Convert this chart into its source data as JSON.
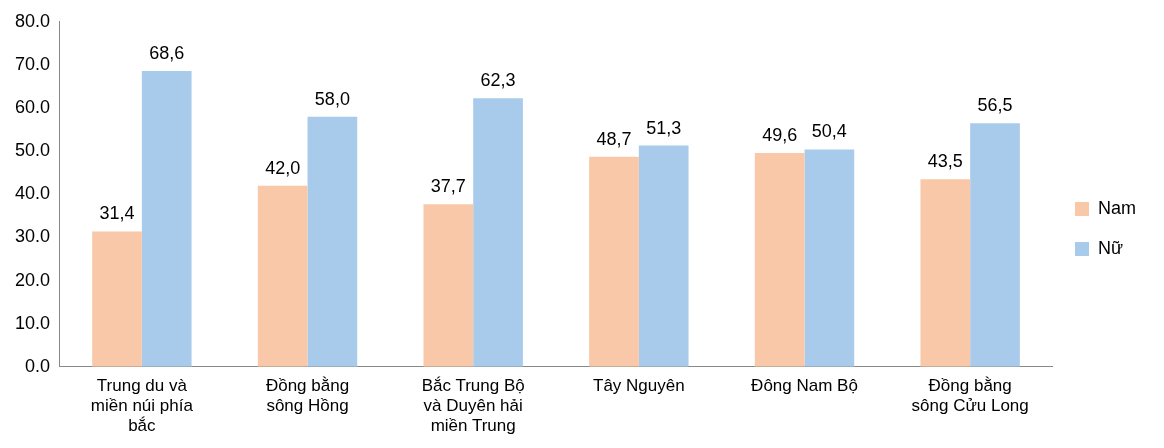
{
  "chart_data": {
    "type": "bar",
    "categories": [
      "Trung du và miền núi phía bắc",
      "Đồng bằng sông Hồng",
      "Bắc Trung Bộ và Duyên hải miền Trung",
      "Tây Nguyên",
      "Đông Nam Bộ",
      "Đồng bằng sông Cửu Long"
    ],
    "series": [
      {
        "name": "Nam",
        "color": "#f8c8a8",
        "values": [
          31.4,
          42.0,
          37.7,
          48.7,
          49.6,
          43.5
        ],
        "value_labels": [
          "31,4",
          "42,0",
          "37,7",
          "48,7",
          "49,6",
          "43,5"
        ]
      },
      {
        "name": "Nữ",
        "color": "#a9cbeb",
        "values": [
          68.6,
          58.0,
          62.3,
          51.3,
          50.4,
          56.5
        ],
        "value_labels": [
          "68,6",
          "58,0",
          "62,3",
          "51,3",
          "50,4",
          "56,5"
        ]
      }
    ],
    "ylim": [
      0,
      80
    ],
    "yticks": [
      {
        "value": 0,
        "label": "0.0"
      },
      {
        "value": 10,
        "label": "10.0"
      },
      {
        "value": 20,
        "label": "20.0"
      },
      {
        "value": 30,
        "label": "30.0"
      },
      {
        "value": 40,
        "label": "40.0"
      },
      {
        "value": 50,
        "label": "50.0"
      },
      {
        "value": 60,
        "label": "60.0"
      },
      {
        "value": 70,
        "label": "70.0"
      },
      {
        "value": 80,
        "label": "80.0"
      }
    ],
    "grid": false,
    "legend": "right"
  }
}
